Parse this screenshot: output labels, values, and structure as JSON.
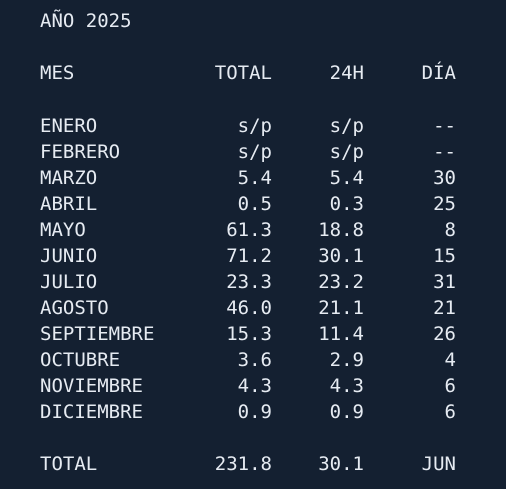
{
  "title": "AÑO 2025",
  "headers": {
    "mes": "MES",
    "total": "TOTAL",
    "h24": "24H",
    "dia": "DÍA"
  },
  "rows": [
    {
      "mes": "ENERO",
      "total": "s/p",
      "h24": "s/p",
      "dia": "--"
    },
    {
      "mes": "FEBRERO",
      "total": "s/p",
      "h24": "s/p",
      "dia": "--"
    },
    {
      "mes": "MARZO",
      "total": "5.4",
      "h24": "5.4",
      "dia": "30"
    },
    {
      "mes": "ABRIL",
      "total": "0.5",
      "h24": "0.3",
      "dia": "25"
    },
    {
      "mes": "MAYO",
      "total": "61.3",
      "h24": "18.8",
      "dia": "8"
    },
    {
      "mes": "JUNIO",
      "total": "71.2",
      "h24": "30.1",
      "dia": "15"
    },
    {
      "mes": "JULIO",
      "total": "23.3",
      "h24": "23.2",
      "dia": "31"
    },
    {
      "mes": "AGOSTO",
      "total": "46.0",
      "h24": "21.1",
      "dia": "21"
    },
    {
      "mes": "SEPTIEMBRE",
      "total": "15.3",
      "h24": "11.4",
      "dia": "26"
    },
    {
      "mes": "OCTUBRE",
      "total": "3.6",
      "h24": "2.9",
      "dia": "4"
    },
    {
      "mes": "NOVIEMBRE",
      "total": "4.3",
      "h24": "4.3",
      "dia": "6"
    },
    {
      "mes": "DICIEMBRE",
      "total": "0.9",
      "h24": "0.9",
      "dia": "6"
    }
  ],
  "summary": {
    "mes": "TOTAL",
    "total": "231.8",
    "h24": "30.1",
    "dia": "JUN"
  }
}
